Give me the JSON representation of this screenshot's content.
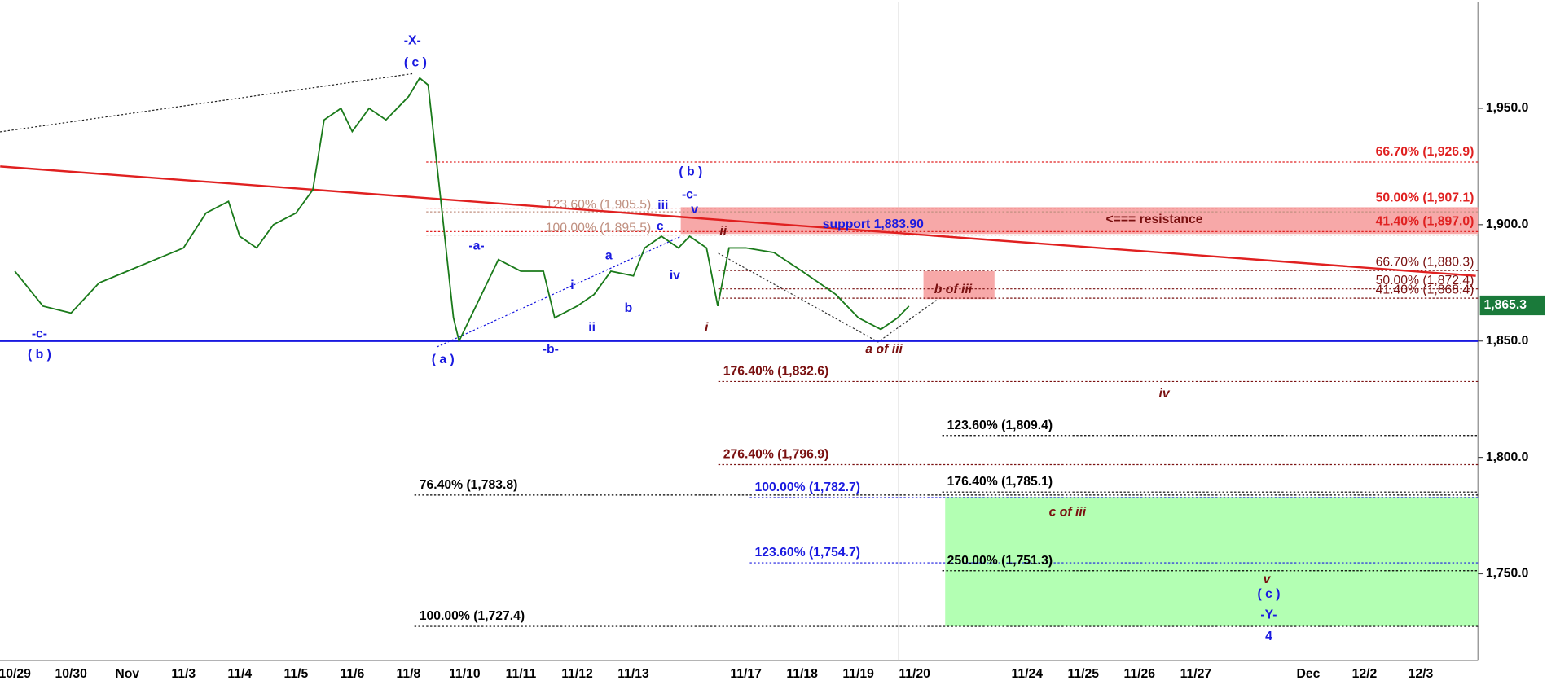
{
  "chart_data": {
    "type": "line",
    "categories": [
      "10/29",
      "10/30",
      "Nov",
      "11/3",
      "11/4",
      "11/5",
      "11/6",
      "11/8",
      "11/10",
      "11/11",
      "11/12",
      "11/13",
      null,
      "11/17",
      "11/18",
      "11/19",
      "11/20",
      null,
      "11/24",
      "11/25",
      "11/26",
      "11/27",
      null,
      "Dec",
      "12/2",
      "12/3"
    ],
    "ylim": [
      1712.7,
      1995.8
    ],
    "yticks": [
      {
        "value": 1750,
        "label": "1,750.0"
      },
      {
        "value": 1800,
        "label": "1,800.0"
      },
      {
        "value": 1850,
        "label": "1,850.0"
      },
      {
        "value": 1900,
        "label": "1,900.0"
      },
      {
        "value": 1950,
        "label": "1,950.0"
      }
    ],
    "series": [
      {
        "color": "#1a7a1a",
        "x": [
          0,
          0.5,
          1,
          1.5,
          2,
          2.5,
          3,
          3.4,
          3.8,
          4,
          4.3,
          4.6,
          5,
          5.3,
          5.5,
          5.8,
          6,
          6.3,
          6.6,
          7,
          7.2,
          7.35,
          7.6,
          7.8,
          7.9,
          8.1,
          8.4,
          8.6,
          9,
          9.4,
          9.6,
          10,
          10.3,
          10.6,
          11,
          11.2,
          11.5,
          11.8,
          12,
          12.3,
          12.5,
          12.7,
          13,
          13.5,
          14,
          14.3,
          14.6,
          15,
          15.4,
          15.7,
          15.9
        ],
        "values": [
          1880,
          1865,
          1862,
          1875,
          1880,
          1885,
          1890,
          1905,
          1910,
          1895,
          1890,
          1900,
          1905,
          1915,
          1945,
          1950,
          1940,
          1950,
          1945,
          1955,
          1963,
          1960,
          1905,
          1860,
          1850,
          1860,
          1875,
          1885,
          1880,
          1880,
          1860,
          1865,
          1870,
          1880,
          1878,
          1890,
          1895,
          1890,
          1895,
          1890,
          1865,
          1890,
          1890,
          1888,
          1880,
          1875,
          1870,
          1860,
          1855,
          1860,
          1865
        ]
      }
    ],
    "last_price": {
      "value": 1865.3,
      "label": "1,865.3"
    },
    "support_level": 1850,
    "trendline": {
      "x": [
        -0.26,
        25.98
      ],
      "values": [
        1925,
        1878
      ]
    },
    "levels": [
      {
        "label": "66.70% (1,926.9)",
        "value": 1926.9,
        "color": "#e02020"
      },
      {
        "label": "50.00% (1,907.1)",
        "value": 1907.1,
        "color": "#e02020"
      },
      {
        "label": "41.40% (1,897.0)",
        "value": 1897.0,
        "color": "#e02020"
      },
      {
        "label": "123.60% (1,905.5)",
        "value": 1905.5,
        "color": "#c09080"
      },
      {
        "label": "100.00% (1,895.5)",
        "value": 1895.5,
        "color": "#c09080"
      },
      {
        "label": "66.70% (1,880.3)",
        "value": 1880.3,
        "color": "#7a1010"
      },
      {
        "label": "50.00% (1,872.4)",
        "value": 1872.4,
        "color": "#7a1010"
      },
      {
        "label": "41.40% (1,868.4)",
        "value": 1868.4,
        "color": "#7a1010"
      },
      {
        "label": "176.40% (1,832.6)",
        "value": 1832.6,
        "color": "#7a1010"
      },
      {
        "label": "123.60% (1,809.4)",
        "value": 1809.4,
        "color": "#000000"
      },
      {
        "label": "276.40% (1,796.9)",
        "value": 1796.9,
        "color": "#7a1010"
      },
      {
        "label": "76.40% (1,783.8)",
        "value": 1783.8,
        "color": "#000000"
      },
      {
        "label": "176.40% (1,785.1)",
        "value": 1785.1,
        "color": "#000000"
      },
      {
        "label": "100.00% (1,782.7)",
        "value": 1782.7,
        "color": "#1a1ae0"
      },
      {
        "label": "123.60% (1,754.7)",
        "value": 1754.7,
        "color": "#1a1ae0"
      },
      {
        "label": "250.00% (1,751.3)",
        "value": 1751.3,
        "color": "#000000"
      },
      {
        "label": "100.00% (1,727.4)",
        "value": 1727.4,
        "color": "#000000"
      }
    ],
    "annotations": [
      "-X-",
      "( c )",
      "( b )",
      "-c-",
      "iii",
      "v",
      "ii",
      "c",
      "-a-",
      "a",
      "i",
      "iv",
      "b",
      "ii",
      "i",
      "-b-",
      "( a )",
      "-c-",
      "( b )",
      "a of iii",
      "b of iii",
      "iv",
      "c of iii",
      "v",
      "( c )",
      "-Y-",
      "4",
      "support 1,883.90",
      "<=== resistance"
    ]
  }
}
